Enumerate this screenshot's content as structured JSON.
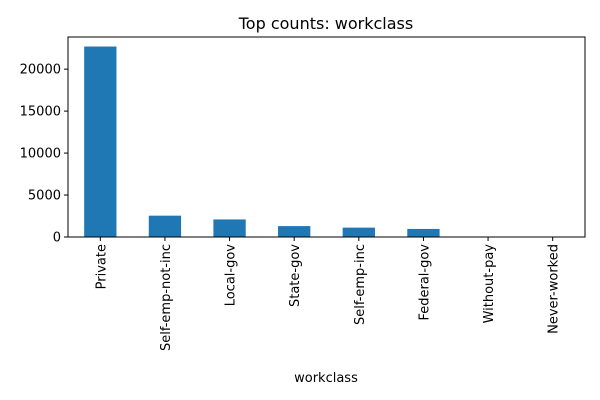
{
  "chart_data": {
    "type": "bar",
    "title": "Top counts: workclass",
    "xlabel": "workclass",
    "ylabel": "",
    "categories": [
      "Private",
      "Self-emp-not-inc",
      "Local-gov",
      "State-gov",
      "Self-emp-inc",
      "Federal-gov",
      "Without-pay",
      "Never-worked"
    ],
    "values": [
      22696,
      2541,
      2093,
      1298,
      1116,
      960,
      14,
      7
    ],
    "ylim": [
      0,
      23831
    ],
    "yticks": [
      0,
      5000,
      10000,
      15000,
      20000
    ],
    "grid": false,
    "bar_color": "#1f77b4"
  }
}
